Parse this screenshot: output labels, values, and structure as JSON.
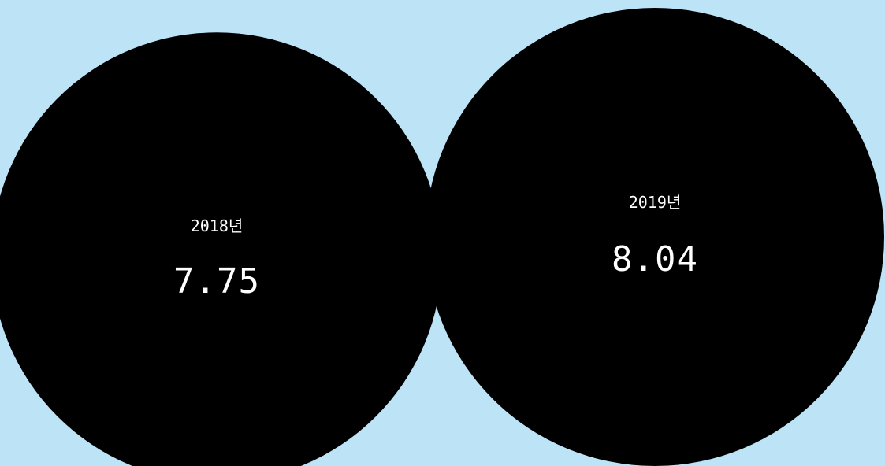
{
  "background_color": "#bde3f7",
  "chart_data": {
    "type": "bubble",
    "title": "",
    "categories": [
      "2018년",
      "2019년"
    ],
    "values": [
      7.75,
      8.04
    ],
    "value_labels": [
      "7.75",
      "8.04"
    ],
    "bubble_color": "#000000",
    "label_color": "#ffffff"
  }
}
